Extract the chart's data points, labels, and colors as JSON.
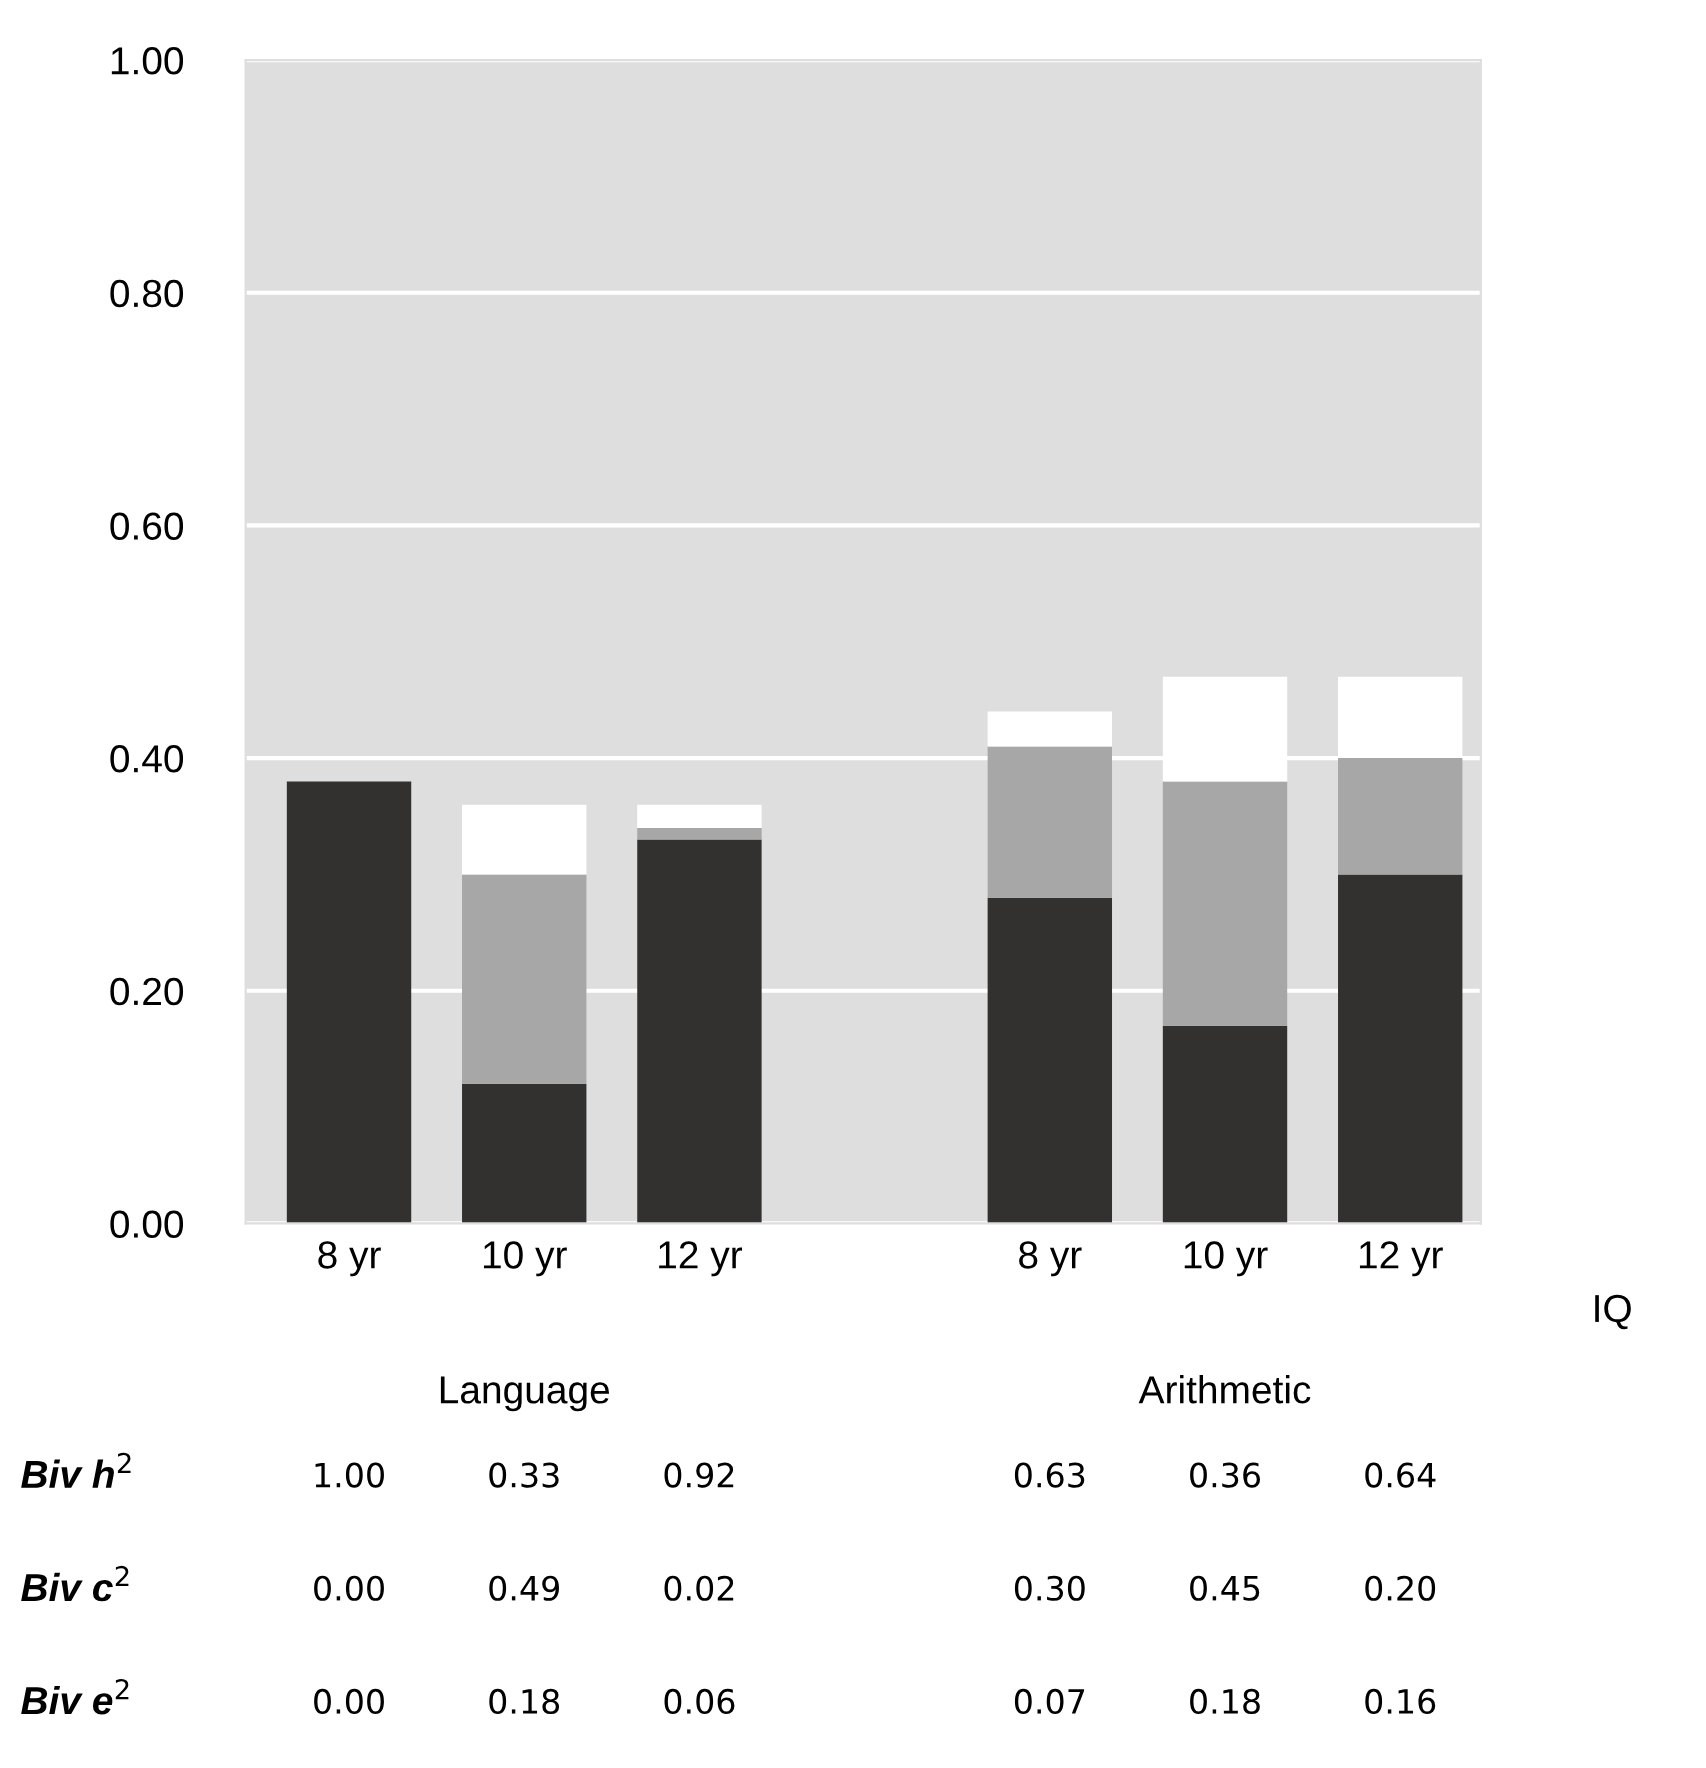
{
  "chart_data": {
    "type": "bar",
    "stacked": true,
    "categories": [
      "8 yr",
      "10 yr",
      "12 yr",
      null,
      "8 yr",
      "10 yr",
      "12 yr"
    ],
    "series": [
      {
        "color": "#333130",
        "values": [
          0.38,
          0.12,
          0.33,
          null,
          0.28,
          0.17,
          0.3
        ]
      },
      {
        "color": "#a8a7a7",
        "values": [
          0.0,
          0.18,
          0.01,
          null,
          0.13,
          0.21,
          0.1
        ]
      },
      {
        "color": "#ffffff",
        "values": [
          0.0,
          0.06,
          0.02,
          null,
          0.03,
          0.09,
          0.07
        ]
      }
    ],
    "ylim": [
      0,
      1
    ],
    "yticks": [
      {
        "value": 0,
        "label": "0.00"
      },
      {
        "value": 0.2,
        "label": "0.20"
      },
      {
        "value": 0.4,
        "label": "0.40"
      },
      {
        "value": 0.6,
        "label": "0.60"
      },
      {
        "value": 0.8,
        "label": "0.80"
      },
      {
        "value": 1,
        "label": "1.00"
      }
    ],
    "grid": "y",
    "annotations": [
      "IQ",
      "Language",
      "Arithmetic",
      "Biv h$^{2}$",
      "Biv c$^{2}$",
      "Biv e$^{2}$",
      "1.00",
      "0.33",
      "0.92",
      "0.63",
      "0.36",
      "0.64",
      "0.00",
      "0.49",
      "0.02",
      "0.30",
      "0.45",
      "0.20",
      "0.00",
      "0.18",
      "0.06",
      "0.07",
      "0.18",
      "0.16"
    ]
  }
}
